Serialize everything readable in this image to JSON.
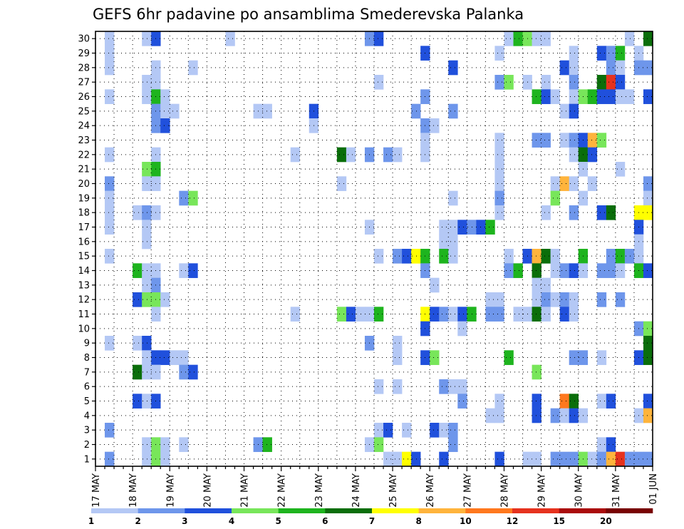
{
  "chart_data": {
    "type": "heatmap",
    "title": "GEFS 6hr padavine po ansamblima Smederevska Palanka",
    "xlabel": "",
    "ylabel": "",
    "x_tick_labels": [
      "17 MAY",
      "18 MAY",
      "19 MAY",
      "20 MAY",
      "21 MAY",
      "22 MAY",
      "23 MAY",
      "24 MAY",
      "25 MAY",
      "26 MAY",
      "27 MAY",
      "28 MAY",
      "29 MAY",
      "30 MAY",
      "31 MAY",
      "01 JUN"
    ],
    "y_tick_labels": [
      "1",
      "2",
      "3",
      "4",
      "5",
      "6",
      "7",
      "8",
      "9",
      "10",
      "11",
      "12",
      "13",
      "14",
      "15",
      "16",
      "17",
      "18",
      "19",
      "20",
      "21",
      "22",
      "23",
      "24",
      "25",
      "26",
      "27",
      "28",
      "29",
      "30"
    ],
    "time_steps": 60,
    "members": 30,
    "grid": true,
    "legend_position": "bottom",
    "legend_thresholds": [
      "1",
      "2",
      "3",
      "4",
      "5",
      "6",
      "7",
      "8",
      "10",
      "12",
      "15",
      "20"
    ],
    "legend_colors": [
      "#b4c8f5",
      "#6e96eb",
      "#2050dc",
      "#78e65a",
      "#1eb41e",
      "#0a6e0a",
      "#ffff00",
      "#ffb43c",
      "#ff781e",
      "#e6321e",
      "#aa0a0a",
      "#780000"
    ],
    "cells": [
      [
        1,
        30,
        1
      ],
      [
        5,
        30,
        1
      ],
      [
        6,
        30,
        3
      ],
      [
        14,
        30,
        1
      ],
      [
        29,
        30,
        2
      ],
      [
        30,
        30,
        3
      ],
      [
        44,
        30,
        1
      ],
      [
        45,
        30,
        5
      ],
      [
        46,
        30,
        4
      ],
      [
        47,
        30,
        1
      ],
      [
        48,
        30,
        1
      ],
      [
        57,
        30,
        1
      ],
      [
        59,
        30,
        6
      ],
      [
        1,
        29,
        1
      ],
      [
        35,
        29,
        3
      ],
      [
        43,
        29,
        1
      ],
      [
        51,
        29,
        1
      ],
      [
        54,
        29,
        3
      ],
      [
        55,
        29,
        2
      ],
      [
        56,
        29,
        5
      ],
      [
        58,
        29,
        1
      ],
      [
        1,
        28,
        1
      ],
      [
        6,
        28,
        1
      ],
      [
        10,
        28,
        1
      ],
      [
        38,
        28,
        3
      ],
      [
        50,
        28,
        3
      ],
      [
        51,
        28,
        1
      ],
      [
        55,
        28,
        2
      ],
      [
        56,
        28,
        1
      ],
      [
        58,
        28,
        2
      ],
      [
        59,
        28,
        2
      ],
      [
        5,
        27,
        1
      ],
      [
        6,
        27,
        1
      ],
      [
        30,
        27,
        1
      ],
      [
        43,
        27,
        2
      ],
      [
        44,
        27,
        4
      ],
      [
        46,
        27,
        1
      ],
      [
        48,
        27,
        1
      ],
      [
        51,
        27,
        2
      ],
      [
        54,
        27,
        6
      ],
      [
        55,
        27,
        10
      ],
      [
        56,
        27,
        3
      ],
      [
        1,
        26,
        1
      ],
      [
        5,
        26,
        1
      ],
      [
        6,
        26,
        5
      ],
      [
        7,
        26,
        1
      ],
      [
        35,
        26,
        2
      ],
      [
        47,
        26,
        5
      ],
      [
        48,
        26,
        3
      ],
      [
        49,
        26,
        1
      ],
      [
        51,
        26,
        1
      ],
      [
        52,
        26,
        4
      ],
      [
        53,
        26,
        5
      ],
      [
        54,
        26,
        3
      ],
      [
        55,
        26,
        3
      ],
      [
        56,
        26,
        1
      ],
      [
        57,
        26,
        1
      ],
      [
        59,
        26,
        3
      ],
      [
        6,
        25,
        2
      ],
      [
        7,
        25,
        1
      ],
      [
        8,
        25,
        1
      ],
      [
        17,
        25,
        1
      ],
      [
        18,
        25,
        1
      ],
      [
        23,
        25,
        3
      ],
      [
        34,
        25,
        2
      ],
      [
        38,
        25,
        2
      ],
      [
        50,
        25,
        1
      ],
      [
        51,
        25,
        3
      ],
      [
        6,
        24,
        2
      ],
      [
        7,
        24,
        3
      ],
      [
        23,
        24,
        1
      ],
      [
        35,
        24,
        2
      ],
      [
        36,
        24,
        1
      ],
      [
        35,
        23,
        1
      ],
      [
        43,
        23,
        1
      ],
      [
        47,
        23,
        2
      ],
      [
        48,
        23,
        2
      ],
      [
        50,
        23,
        1
      ],
      [
        51,
        23,
        2
      ],
      [
        52,
        23,
        3
      ],
      [
        53,
        23,
        8
      ],
      [
        54,
        23,
        4
      ],
      [
        1,
        22,
        1
      ],
      [
        6,
        22,
        1
      ],
      [
        21,
        22,
        1
      ],
      [
        26,
        22,
        6
      ],
      [
        27,
        22,
        1
      ],
      [
        29,
        22,
        2
      ],
      [
        31,
        22,
        2
      ],
      [
        32,
        22,
        1
      ],
      [
        35,
        22,
        1
      ],
      [
        43,
        22,
        1
      ],
      [
        51,
        22,
        1
      ],
      [
        52,
        22,
        6
      ],
      [
        53,
        22,
        3
      ],
      [
        5,
        21,
        4
      ],
      [
        6,
        21,
        5
      ],
      [
        43,
        21,
        1
      ],
      [
        52,
        21,
        1
      ],
      [
        56,
        21,
        1
      ],
      [
        1,
        20,
        2
      ],
      [
        5,
        20,
        1
      ],
      [
        6,
        20,
        1
      ],
      [
        26,
        20,
        1
      ],
      [
        43,
        20,
        1
      ],
      [
        49,
        20,
        1
      ],
      [
        50,
        20,
        8
      ],
      [
        51,
        20,
        1
      ],
      [
        53,
        20,
        1
      ],
      [
        59,
        20,
        2
      ],
      [
        1,
        19,
        1
      ],
      [
        9,
        19,
        2
      ],
      [
        10,
        19,
        4
      ],
      [
        38,
        19,
        1
      ],
      [
        43,
        19,
        2
      ],
      [
        49,
        19,
        4
      ],
      [
        52,
        19,
        1
      ],
      [
        59,
        19,
        1
      ],
      [
        1,
        18,
        1
      ],
      [
        4,
        18,
        1
      ],
      [
        5,
        18,
        2
      ],
      [
        6,
        18,
        1
      ],
      [
        43,
        18,
        1
      ],
      [
        48,
        18,
        1
      ],
      [
        51,
        18,
        2
      ],
      [
        54,
        18,
        3
      ],
      [
        55,
        18,
        6
      ],
      [
        58,
        18,
        7
      ],
      [
        59,
        18,
        7
      ],
      [
        1,
        17,
        1
      ],
      [
        5,
        17,
        1
      ],
      [
        29,
        17,
        1
      ],
      [
        37,
        17,
        1
      ],
      [
        38,
        17,
        1
      ],
      [
        39,
        17,
        3
      ],
      [
        40,
        17,
        2
      ],
      [
        41,
        17,
        3
      ],
      [
        42,
        17,
        5
      ],
      [
        58,
        17,
        3
      ],
      [
        5,
        16,
        1
      ],
      [
        37,
        16,
        1
      ],
      [
        38,
        16,
        1
      ],
      [
        58,
        16,
        1
      ],
      [
        1,
        15,
        1
      ],
      [
        30,
        15,
        1
      ],
      [
        32,
        15,
        2
      ],
      [
        33,
        15,
        3
      ],
      [
        34,
        15,
        7
      ],
      [
        35,
        15,
        5
      ],
      [
        37,
        15,
        5
      ],
      [
        38,
        15,
        1
      ],
      [
        44,
        15,
        1
      ],
      [
        46,
        15,
        3
      ],
      [
        47,
        15,
        8
      ],
      [
        48,
        15,
        6
      ],
      [
        49,
        15,
        1
      ],
      [
        52,
        15,
        5
      ],
      [
        55,
        15,
        2
      ],
      [
        56,
        15,
        5
      ],
      [
        57,
        15,
        2
      ],
      [
        58,
        15,
        1
      ],
      [
        4,
        14,
        5
      ],
      [
        5,
        14,
        1
      ],
      [
        6,
        14,
        1
      ],
      [
        9,
        14,
        1
      ],
      [
        10,
        14,
        3
      ],
      [
        35,
        14,
        2
      ],
      [
        44,
        14,
        2
      ],
      [
        45,
        14,
        5
      ],
      [
        47,
        14,
        6
      ],
      [
        49,
        14,
        1
      ],
      [
        50,
        14,
        2
      ],
      [
        51,
        14,
        3
      ],
      [
        52,
        14,
        1
      ],
      [
        54,
        14,
        2
      ],
      [
        55,
        14,
        2
      ],
      [
        56,
        14,
        1
      ],
      [
        58,
        14,
        5
      ],
      [
        59,
        14,
        3
      ],
      [
        5,
        13,
        1
      ],
      [
        6,
        13,
        2
      ],
      [
        36,
        13,
        1
      ],
      [
        47,
        13,
        1
      ],
      [
        48,
        13,
        1
      ],
      [
        4,
        12,
        3
      ],
      [
        5,
        12,
        4
      ],
      [
        6,
        12,
        4
      ],
      [
        7,
        12,
        1
      ],
      [
        42,
        12,
        1
      ],
      [
        43,
        12,
        1
      ],
      [
        47,
        12,
        1
      ],
      [
        48,
        12,
        2
      ],
      [
        49,
        12,
        1
      ],
      [
        50,
        12,
        2
      ],
      [
        51,
        12,
        1
      ],
      [
        54,
        12,
        2
      ],
      [
        56,
        12,
        2
      ],
      [
        6,
        11,
        1
      ],
      [
        21,
        11,
        1
      ],
      [
        26,
        11,
        4
      ],
      [
        27,
        11,
        3
      ],
      [
        28,
        11,
        1
      ],
      [
        29,
        11,
        1
      ],
      [
        30,
        11,
        5
      ],
      [
        35,
        11,
        7
      ],
      [
        36,
        11,
        3
      ],
      [
        37,
        11,
        2
      ],
      [
        38,
        11,
        1
      ],
      [
        39,
        11,
        3
      ],
      [
        40,
        11,
        5
      ],
      [
        42,
        11,
        2
      ],
      [
        43,
        11,
        2
      ],
      [
        45,
        11,
        1
      ],
      [
        46,
        11,
        1
      ],
      [
        47,
        11,
        6
      ],
      [
        48,
        11,
        1
      ],
      [
        50,
        11,
        3
      ],
      [
        51,
        11,
        1
      ],
      [
        35,
        10,
        3
      ],
      [
        39,
        10,
        1
      ],
      [
        58,
        10,
        2
      ],
      [
        59,
        10,
        4
      ],
      [
        1,
        9,
        1
      ],
      [
        4,
        9,
        1
      ],
      [
        5,
        9,
        3
      ],
      [
        29,
        9,
        2
      ],
      [
        32,
        9,
        1
      ],
      [
        59,
        9,
        6
      ],
      [
        5,
        8,
        1
      ],
      [
        6,
        8,
        3
      ],
      [
        7,
        8,
        3
      ],
      [
        8,
        8,
        1
      ],
      [
        9,
        8,
        1
      ],
      [
        32,
        8,
        1
      ],
      [
        35,
        8,
        3
      ],
      [
        36,
        8,
        4
      ],
      [
        44,
        8,
        5
      ],
      [
        51,
        8,
        2
      ],
      [
        52,
        8,
        2
      ],
      [
        54,
        8,
        1
      ],
      [
        58,
        8,
        3
      ],
      [
        59,
        8,
        6
      ],
      [
        4,
        7,
        6
      ],
      [
        5,
        7,
        1
      ],
      [
        6,
        7,
        1
      ],
      [
        9,
        7,
        2
      ],
      [
        10,
        7,
        3
      ],
      [
        47,
        7,
        4
      ],
      [
        30,
        6,
        1
      ],
      [
        32,
        6,
        1
      ],
      [
        37,
        6,
        2
      ],
      [
        38,
        6,
        1
      ],
      [
        39,
        6,
        1
      ],
      [
        4,
        5,
        3
      ],
      [
        5,
        5,
        1
      ],
      [
        6,
        5,
        3
      ],
      [
        39,
        5,
        2
      ],
      [
        43,
        5,
        1
      ],
      [
        47,
        5,
        3
      ],
      [
        50,
        5,
        9
      ],
      [
        51,
        5,
        6
      ],
      [
        54,
        5,
        1
      ],
      [
        55,
        5,
        3
      ],
      [
        59,
        5,
        3
      ],
      [
        42,
        4,
        1
      ],
      [
        43,
        4,
        1
      ],
      [
        47,
        4,
        3
      ],
      [
        49,
        4,
        2
      ],
      [
        50,
        4,
        1
      ],
      [
        51,
        4,
        3
      ],
      [
        52,
        4,
        1
      ],
      [
        58,
        4,
        1
      ],
      [
        59,
        4,
        8
      ],
      [
        1,
        3,
        2
      ],
      [
        30,
        3,
        1
      ],
      [
        31,
        3,
        3
      ],
      [
        33,
        3,
        1
      ],
      [
        36,
        3,
        3
      ],
      [
        37,
        3,
        1
      ],
      [
        38,
        3,
        2
      ],
      [
        5,
        2,
        1
      ],
      [
        6,
        2,
        4
      ],
      [
        7,
        2,
        1
      ],
      [
        9,
        2,
        1
      ],
      [
        17,
        2,
        2
      ],
      [
        18,
        2,
        5
      ],
      [
        29,
        2,
        1
      ],
      [
        30,
        2,
        4
      ],
      [
        38,
        2,
        2
      ],
      [
        54,
        2,
        1
      ],
      [
        55,
        2,
        3
      ],
      [
        1,
        1,
        2
      ],
      [
        5,
        1,
        1
      ],
      [
        6,
        1,
        4
      ],
      [
        7,
        1,
        1
      ],
      [
        31,
        1,
        1
      ],
      [
        32,
        1,
        1
      ],
      [
        33,
        1,
        7
      ],
      [
        34,
        1,
        3
      ],
      [
        37,
        1,
        3
      ],
      [
        43,
        1,
        3
      ],
      [
        46,
        1,
        1
      ],
      [
        47,
        1,
        1
      ],
      [
        49,
        1,
        2
      ],
      [
        50,
        1,
        2
      ],
      [
        51,
        1,
        2
      ],
      [
        52,
        1,
        4
      ],
      [
        53,
        1,
        1
      ],
      [
        54,
        1,
        2
      ],
      [
        55,
        1,
        8
      ],
      [
        56,
        1,
        10
      ],
      [
        57,
        1,
        2
      ],
      [
        58,
        1,
        2
      ],
      [
        59,
        1,
        2
      ]
    ]
  }
}
